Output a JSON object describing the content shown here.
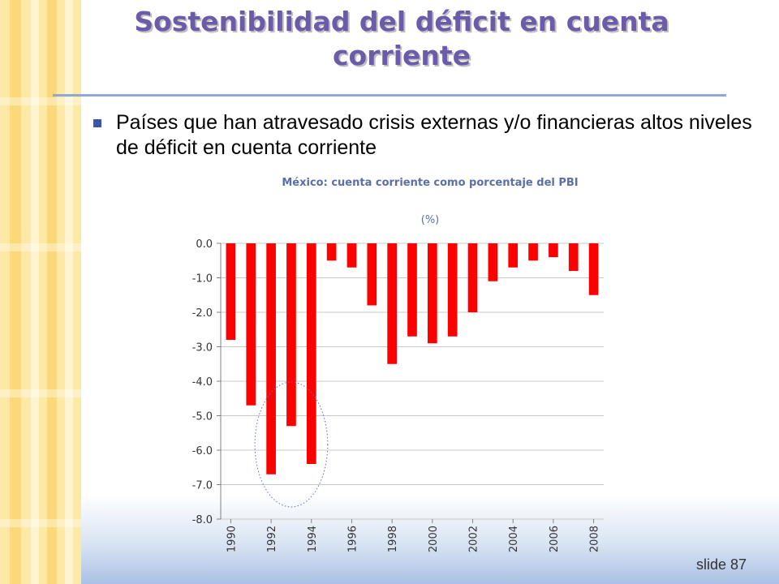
{
  "slide": {
    "title": "Sostenibilidad del déficit en cuenta corriente",
    "bullet": "Países que han atravesado crisis externas y/o financieras altos niveles de déficit en cuenta corriente",
    "slide_number": "slide 87"
  },
  "colors": {
    "title": "#6b5ba8",
    "bar": "#ff0000",
    "axis_text": "#5a6fa7",
    "ellipse": "#5b6fc9"
  },
  "chart_data": {
    "type": "bar",
    "title": "México: cuenta corriente como porcentaje del PBI",
    "unit": "(%)",
    "xlabel": "",
    "ylabel": "",
    "categories": [
      "1990",
      "1991",
      "1992",
      "1993",
      "1994",
      "1995",
      "1996",
      "1997",
      "1998",
      "1999",
      "2000",
      "2001",
      "2002",
      "2003",
      "2004",
      "2005",
      "2006",
      "2007",
      "2008"
    ],
    "x_tick_labels": [
      "1990",
      "1992",
      "1994",
      "1996",
      "1998",
      "2000",
      "2002",
      "2004",
      "2006",
      "2008"
    ],
    "values": [
      -2.8,
      -4.7,
      -6.7,
      -5.3,
      -6.4,
      -0.5,
      -0.7,
      -1.8,
      -3.5,
      -2.7,
      -2.9,
      -2.7,
      -2.0,
      -1.1,
      -0.7,
      -0.5,
      -0.4,
      -0.8,
      -1.5
    ],
    "y_ticks": [
      "0.0",
      "-1.0",
      "-2.0",
      "-3.0",
      "-4.0",
      "-5.0",
      "-6.0",
      "-7.0",
      "-8.0"
    ],
    "ylim": [
      -8,
      0
    ],
    "grid": true,
    "annotation": "dotted ellipse highlighting 1992–1994"
  }
}
